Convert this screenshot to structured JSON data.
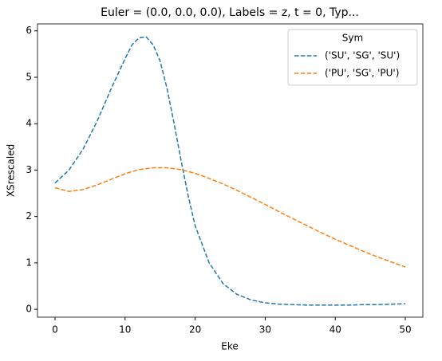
{
  "chart_data": {
    "type": "line",
    "title": "Euler = (0.0, 0.0, 0.0), Labels = z, t = 0, Typ...",
    "x_label": "Eke",
    "y_label": "XSrescaled",
    "x": [
      0,
      2,
      4,
      6,
      8,
      10,
      11,
      12,
      13,
      14,
      15,
      16,
      17,
      18,
      19,
      20,
      22,
      24,
      26,
      28,
      30,
      32,
      34,
      36,
      38,
      40,
      42,
      44,
      46,
      48,
      50
    ],
    "series": [
      {
        "name": "('SU', 'SG', 'SU')",
        "color": "#1f77b4",
        "values": [
          2.72,
          3.0,
          3.45,
          4.05,
          4.75,
          5.4,
          5.7,
          5.85,
          5.87,
          5.7,
          5.35,
          4.75,
          4.0,
          3.2,
          2.45,
          1.8,
          1.0,
          0.55,
          0.32,
          0.2,
          0.14,
          0.11,
          0.1,
          0.09,
          0.09,
          0.09,
          0.09,
          0.1,
          0.1,
          0.11,
          0.12
        ]
      },
      {
        "name": "('PU', 'SG', 'PU')",
        "color": "#ff7f0e",
        "values": [
          2.62,
          2.54,
          2.58,
          2.68,
          2.8,
          2.92,
          2.97,
          3.01,
          3.03,
          3.05,
          3.05,
          3.05,
          3.03,
          3.01,
          2.97,
          2.93,
          2.82,
          2.7,
          2.56,
          2.41,
          2.26,
          2.1,
          1.95,
          1.8,
          1.65,
          1.51,
          1.38,
          1.25,
          1.13,
          1.02,
          0.91
        ]
      }
    ],
    "legend_title": "Sym",
    "legend_position": "upper right",
    "line_style": "dashed",
    "xlim": [
      -2.5,
      52.5
    ],
    "xticks": [
      0,
      10,
      20,
      30,
      40,
      50
    ],
    "ylim": [
      -0.17,
      6.15
    ],
    "yticks": [
      0,
      1,
      2,
      3,
      4,
      5,
      6
    ]
  }
}
